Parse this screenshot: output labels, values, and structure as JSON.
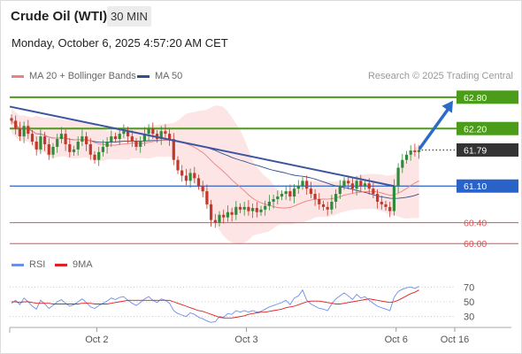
{
  "header": {
    "title": "Crude Oil (WTI)",
    "timeframe": "30 MIN",
    "datetime": "Monday, October 6, 2025 4:57:20 AM CET"
  },
  "legend": {
    "ma20": "MA 20 + Bollinger Bands",
    "ma50": "MA 50",
    "credit": "Research © 2025 Trading Central",
    "rsi": "RSI",
    "ma9": "9MA"
  },
  "colors": {
    "ma20": "#f08080",
    "band_fill": "#fde0e0",
    "ma50": "#2f4f8f",
    "trendline": "#3d55a0",
    "candle_up": "#2e8b3a",
    "candle_down": "#c0392b",
    "resistance": "#4a9c1a",
    "support_blue": "#2a63c8",
    "support_red": "#e05050",
    "current_price": "#333333",
    "arrow": "#2a6cc8",
    "rsi_line": "#6b8ee8",
    "rsi_ma": "#e02020"
  },
  "chart_data": [
    {
      "type": "candlestick",
      "x_ticks": [
        "Oct 2",
        "Oct 3",
        "Oct 6",
        "Oct 16"
      ],
      "ylim": [
        59.8,
        63.0
      ],
      "levels": [
        {
          "value": 62.8,
          "label": "62.80",
          "style": "resistance"
        },
        {
          "value": 62.2,
          "label": "62.20",
          "style": "resistance"
        },
        {
          "value": 61.79,
          "label": "61.79",
          "style": "current"
        },
        {
          "value": 61.1,
          "label": "61.10",
          "style": "support_blue"
        },
        {
          "value": 60.4,
          "label": "60.40",
          "style": "support_red"
        },
        {
          "value": 60.0,
          "label": "60.00",
          "style": "support_red"
        }
      ],
      "close": [
        62.35,
        62.2,
        62.05,
        62.25,
        62.1,
        61.95,
        61.8,
        62.05,
        61.9,
        61.7,
        61.85,
        62.0,
        62.1,
        61.9,
        61.75,
        61.8,
        61.95,
        62.05,
        61.9,
        61.7,
        61.6,
        61.75,
        61.85,
        61.95,
        62.05,
        62.0,
        62.1,
        62.15,
        62.05,
        61.95,
        61.85,
        61.95,
        62.1,
        62.2,
        62.1,
        62.0,
        62.15,
        62.1,
        62.0,
        61.6,
        61.4,
        61.3,
        61.2,
        61.35,
        61.25,
        61.1,
        61.0,
        60.75,
        60.45,
        60.4,
        60.55,
        60.5,
        60.6,
        60.55,
        60.7,
        60.65,
        60.7,
        60.62,
        60.68,
        60.6,
        60.65,
        60.72,
        60.8,
        60.85,
        60.9,
        60.95,
        61.0,
        60.9,
        61.05,
        61.1,
        61.2,
        61.05,
        60.95,
        60.85,
        60.75,
        60.7,
        60.65,
        60.8,
        60.95,
        61.1,
        61.2,
        61.15,
        61.05,
        61.2,
        61.1,
        61.15,
        61.05,
        60.95,
        60.8,
        60.75,
        60.7,
        60.62,
        61.1,
        61.45,
        61.6,
        61.7,
        61.78,
        61.75,
        61.79
      ],
      "trendline": {
        "from": {
          "bar": 0,
          "price": 62.62
        },
        "to": {
          "bar": 92,
          "price": 61.1
        }
      },
      "forecast_arrow": {
        "from_price": 61.79,
        "to_price": 62.8
      }
    },
    {
      "type": "line",
      "name": "RSI",
      "ylim": [
        20,
        80
      ],
      "ticks": [
        70,
        50,
        30
      ],
      "series": [
        {
          "name": "RSI",
          "values": [
            48,
            52,
            46,
            55,
            50,
            44,
            40,
            52,
            47,
            41,
            45,
            50,
            53,
            48,
            44,
            46,
            50,
            54,
            49,
            43,
            41,
            45,
            48,
            51,
            55,
            53,
            56,
            57,
            52,
            48,
            45,
            49,
            54,
            57,
            52,
            49,
            54,
            52,
            48,
            38,
            34,
            32,
            30,
            35,
            33,
            29,
            27,
            24,
            22,
            23,
            30,
            29,
            34,
            33,
            38,
            36,
            38,
            36,
            38,
            36,
            37,
            40,
            43,
            45,
            47,
            49,
            52,
            46,
            55,
            58,
            66,
            52,
            47,
            44,
            41,
            40,
            38,
            47,
            54,
            58,
            62,
            58,
            53,
            60,
            55,
            57,
            52,
            48,
            44,
            42,
            40,
            38,
            56,
            64,
            67,
            69,
            70,
            68,
            71
          ]
        },
        {
          "name": "9MA",
          "values": [
            50,
            50,
            49,
            50,
            50,
            49,
            48,
            48,
            48,
            48,
            47,
            47,
            47,
            47,
            47,
            47,
            47,
            48,
            48,
            48,
            47,
            47,
            47,
            47,
            48,
            49,
            50,
            51,
            52,
            52,
            52,
            52,
            52,
            52,
            52,
            52,
            52,
            52,
            52,
            50,
            48,
            46,
            44,
            42,
            40,
            38,
            37,
            35,
            33,
            31,
            29,
            28,
            28,
            28,
            29,
            30,
            31,
            33,
            34,
            35,
            36,
            36,
            37,
            38,
            39,
            40,
            42,
            43,
            44,
            46,
            48,
            50,
            51,
            51,
            51,
            50,
            49,
            48,
            47,
            47,
            48,
            49,
            50,
            51,
            52,
            53,
            54,
            53,
            52,
            51,
            50,
            49,
            50,
            52,
            55,
            58,
            61,
            63,
            66
          ]
        }
      ]
    }
  ]
}
